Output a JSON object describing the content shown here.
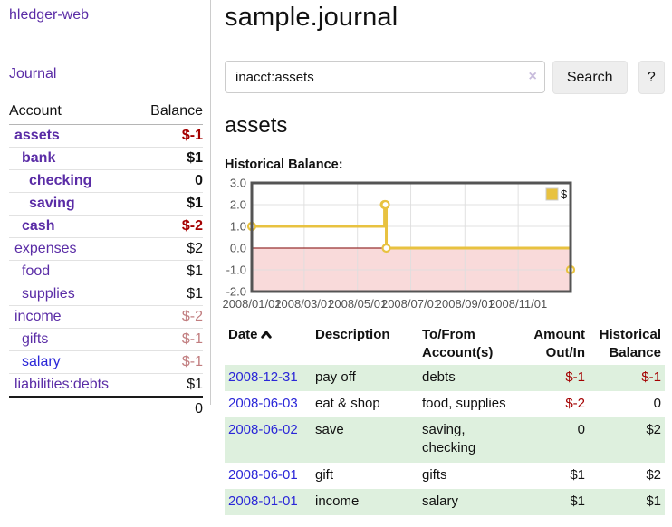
{
  "app": {
    "brand": "hledger-web"
  },
  "sidebar": {
    "journal_link": "Journal",
    "account_table": {
      "account_header": "Account",
      "balance_header": "Balance",
      "rows": [
        {
          "label": "assets",
          "depth": 1,
          "bold": true,
          "link_style": "visited",
          "balance": "$-1",
          "balance_style": "negative"
        },
        {
          "label": "bank",
          "depth": 2,
          "bold": true,
          "link_style": "visited",
          "balance": "$1",
          "balance_style": "normal"
        },
        {
          "label": "checking",
          "depth": 3,
          "bold": true,
          "link_style": "visited",
          "balance": "0",
          "balance_style": "normal"
        },
        {
          "label": "saving",
          "depth": 3,
          "bold": true,
          "link_style": "visited",
          "balance": "$1",
          "balance_style": "normal"
        },
        {
          "label": "cash",
          "depth": 2,
          "bold": true,
          "link_style": "visited",
          "balance": "$-2",
          "balance_style": "negative"
        },
        {
          "label": "expenses",
          "depth": 1,
          "bold": false,
          "link_style": "visited",
          "balance": "$2",
          "balance_style": "normal"
        },
        {
          "label": "food",
          "depth": 2,
          "bold": false,
          "link_style": "visited",
          "balance": "$1",
          "balance_style": "normal"
        },
        {
          "label": "supplies",
          "depth": 2,
          "bold": false,
          "link_style": "visited",
          "balance": "$1",
          "balance_style": "normal"
        },
        {
          "label": "income",
          "depth": 1,
          "bold": false,
          "link_style": "visited",
          "balance": "$-2",
          "balance_style": "negative-faded"
        },
        {
          "label": "gifts",
          "depth": 2,
          "bold": false,
          "link_style": "visited",
          "balance": "$-1",
          "balance_style": "negative-faded"
        },
        {
          "label": "salary",
          "depth": 2,
          "bold": false,
          "link_style": "unvisited",
          "balance": "$-1",
          "balance_style": "negative-faded"
        },
        {
          "label": "liabilities:debts",
          "depth": 1,
          "bold": false,
          "link_style": "visited",
          "balance": "$1",
          "balance_style": "normal"
        }
      ],
      "total": "0"
    }
  },
  "main": {
    "title": "sample.journal",
    "search": {
      "value": "inacct:assets",
      "clear_icon": "×",
      "search_button": "Search",
      "help_button": "?"
    },
    "account_heading": "assets",
    "register": {
      "headers": {
        "date": "Date",
        "description": "Description",
        "accounts": "To/From Account(s)",
        "amount": "Amount Out/In",
        "balance": "Historical Balance"
      },
      "rows": [
        {
          "date": "2008-12-31",
          "description": "pay off",
          "accounts": "debts",
          "amount": "$-1",
          "amount_negative": true,
          "balance": "$-1",
          "balance_negative": true
        },
        {
          "date": "2008-06-03",
          "description": "eat & shop",
          "accounts": "food, supplies",
          "amount": "$-2",
          "amount_negative": true,
          "balance": "0",
          "balance_negative": false
        },
        {
          "date": "2008-06-02",
          "description": "save",
          "accounts": "saving, checking",
          "amount": "0",
          "amount_negative": false,
          "balance": "$2",
          "balance_negative": false
        },
        {
          "date": "2008-06-01",
          "description": "gift",
          "accounts": "gifts",
          "amount": "$1",
          "amount_negative": false,
          "balance": "$2",
          "balance_negative": false
        },
        {
          "date": "2008-01-01",
          "description": "income",
          "accounts": "salary",
          "amount": "$1",
          "amount_negative": false,
          "balance": "$1",
          "balance_negative": false
        }
      ]
    }
  },
  "chart_data": {
    "type": "line",
    "title": "Historical Balance:",
    "step": true,
    "series": [
      {
        "name": "$",
        "points": [
          [
            "2008-01-01",
            1
          ],
          [
            "2008-06-01",
            2
          ],
          [
            "2008-06-02",
            2
          ],
          [
            "2008-06-03",
            0
          ],
          [
            "2008-12-31",
            -1
          ]
        ]
      }
    ],
    "x_tick_labels": [
      "2008/01/01",
      "2008/03/01",
      "2008/05/01",
      "2008/07/01",
      "2008/09/01",
      "2008/11/01"
    ],
    "y_tick_labels": [
      "3.0",
      "2.0",
      "1.0",
      "0.0",
      "-1.0",
      "-2.0"
    ],
    "ylim": [
      -2,
      3
    ],
    "xlim": [
      "2008-01-01",
      "2008-12-31"
    ],
    "legend_position": "top-right",
    "grid": true,
    "colors": {
      "line": "#e8c240",
      "marker_fill": "#ffffff",
      "negative_region": "#f9dada",
      "zero_line": "#983030",
      "border": "#545454",
      "axis_text": "#545454",
      "grid_line": "#dedede",
      "legend_border": "#cccccc"
    }
  },
  "colors": {
    "visited_link": "#5a2ca6",
    "unvisited_link": "#2b27d8",
    "negative_amount": "#a40000",
    "negative_amount_faded": "#c17d7f",
    "row_highlight_green": "#def0de"
  }
}
